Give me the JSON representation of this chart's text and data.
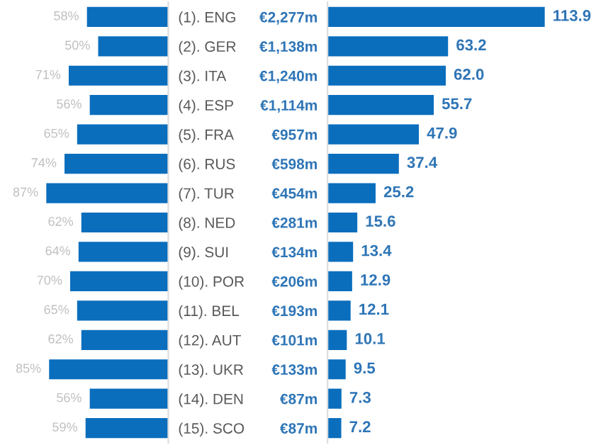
{
  "chart_data": [
    {
      "type": "bar",
      "orientation": "horizontal",
      "categories": [
        "(1). ENG",
        "(2). GER",
        "(3). ITA",
        "(4). ESP",
        "(5). FRA",
        "(6). RUS",
        "(7). TUR",
        "(8). NED",
        "(9). SUI",
        "(10). POR",
        "(11). BEL",
        "(12). AUT",
        "(13). UKR",
        "(14). DEN",
        "(15). SCO"
      ],
      "values": [
        58,
        50,
        71,
        56,
        65,
        74,
        87,
        62,
        64,
        70,
        65,
        62,
        85,
        56,
        59
      ],
      "value_labels": [
        "58%",
        "50%",
        "71%",
        "56%",
        "65%",
        "74%",
        "87%",
        "62%",
        "64%",
        "70%",
        "65%",
        "62%",
        "85%",
        "56%",
        "59%"
      ],
      "color": "#0a6ebd",
      "tick_labels": "y"
    },
    {
      "type": "bar",
      "orientation": "horizontal",
      "categories": [
        "€2,277m",
        "€1,138m",
        "€1,240m",
        "€1,114m",
        "€957m",
        "€598m",
        "€454m",
        "€281m",
        "€134m",
        "€206m",
        "€193m",
        "€101m",
        "€133m",
        "€87m",
        "€87m"
      ],
      "values": [
        113.9,
        63.2,
        62.0,
        55.7,
        47.9,
        37.4,
        25.2,
        15.6,
        13.4,
        12.9,
        12.1,
        10.1,
        9.5,
        7.3,
        7.2
      ],
      "value_labels": [
        "113.9",
        "63.2",
        "62.0",
        "55.7",
        "47.9",
        "37.4",
        "25.2",
        "15.6",
        "13.4",
        "12.9",
        "12.1",
        "10.1",
        "9.5",
        "7.3",
        "7.2"
      ],
      "color": "#0a6ebd",
      "tick_labels": "y"
    }
  ]
}
